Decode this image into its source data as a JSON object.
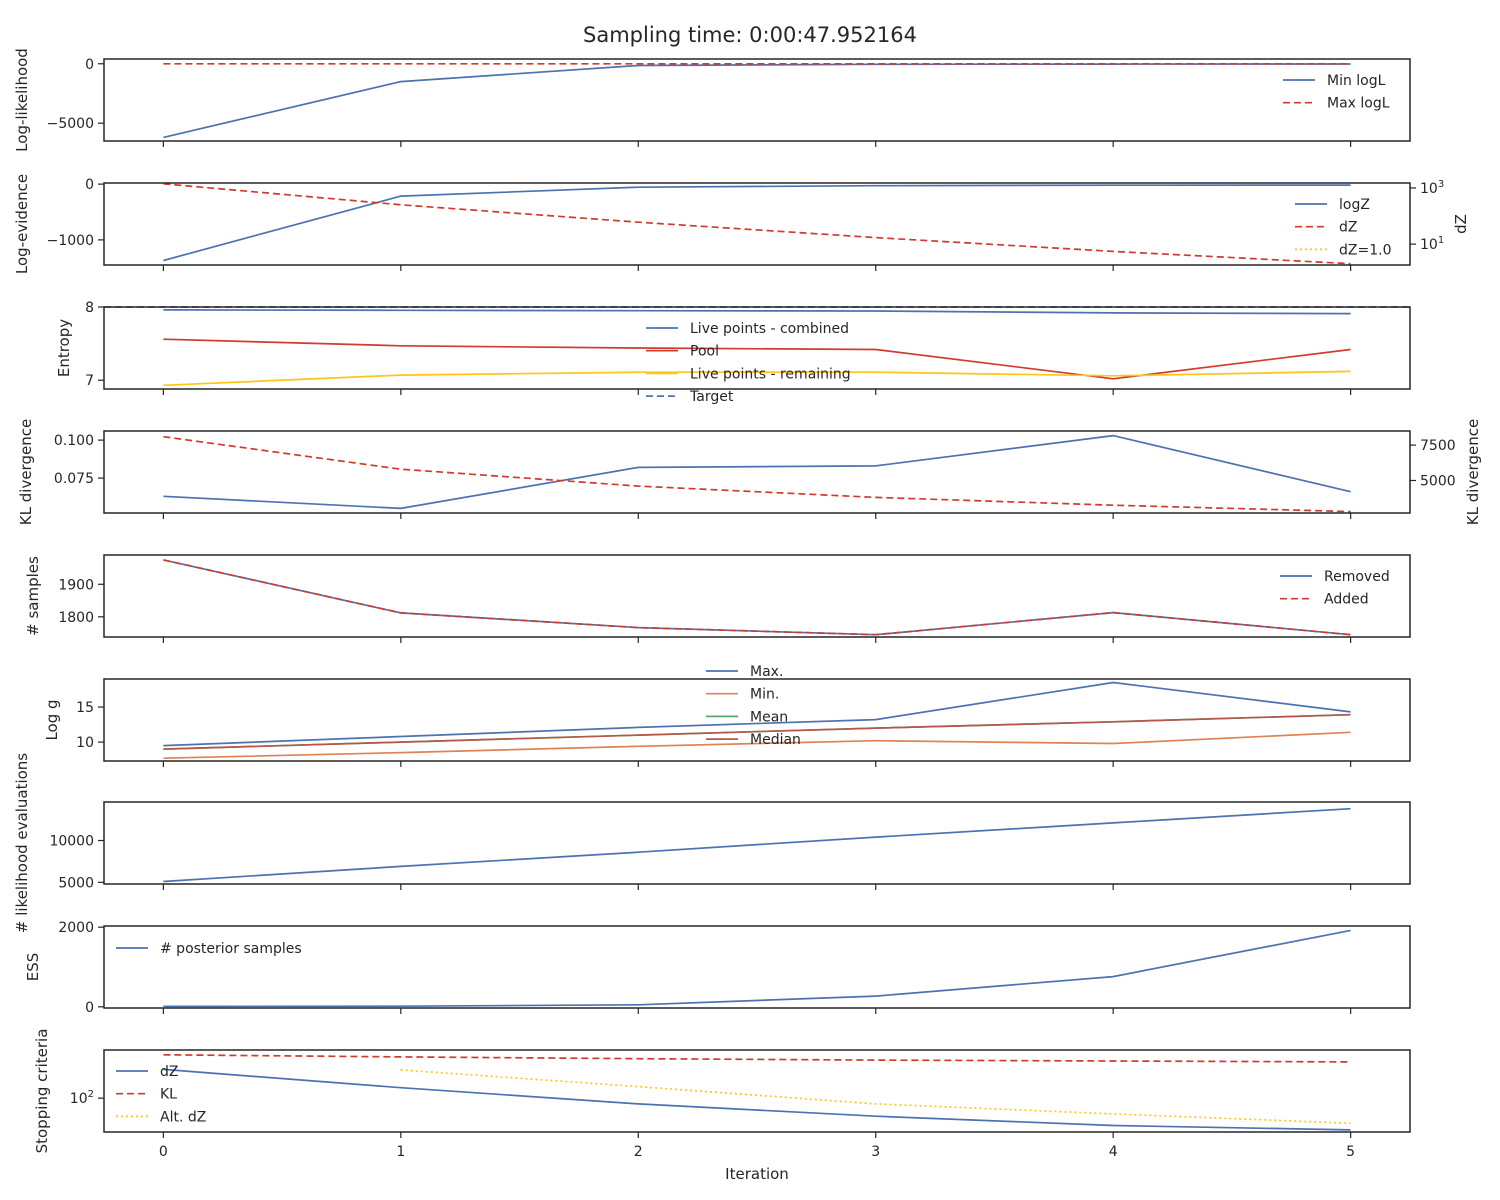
{
  "title": "Sampling time: 0:00:47.952164",
  "chart_data": {
    "type": "line",
    "xlabel": "Iteration",
    "x": [
      0,
      1,
      2,
      3,
      4,
      5
    ],
    "xticks": [
      0,
      1,
      2,
      3,
      4,
      5
    ],
    "xlim": [
      -0.25,
      5.25
    ],
    "grid": false,
    "colors": {
      "blue": "#4c72b0",
      "orange": "#dd8452",
      "green": "#55a868",
      "red": "#d03b2e",
      "yellow": "#fec615",
      "brown": "#b6574b"
    },
    "panels": [
      {
        "id": "loglikelihood",
        "ylabel": "Log-likelihood",
        "ylim": [
          -6500,
          400
        ],
        "yticks": [
          {
            "v": 0,
            "label": "0"
          },
          {
            "v": -5000,
            "label": "−5000"
          }
        ],
        "legend": "top-right",
        "series": [
          {
            "name": "Min logL",
            "color": "blue",
            "dash": "solid",
            "values": [
              -6200,
              -1500,
              -150,
              -50,
              -30,
              -20
            ]
          },
          {
            "name": "Max logL",
            "color": "red",
            "dash": "dashed",
            "values": [
              0,
              0,
              0,
              0,
              0,
              0
            ]
          }
        ]
      },
      {
        "id": "logevidence",
        "ylabel": "Log-evidence",
        "ylim": [
          -1450,
          20
        ],
        "yticks": [
          {
            "v": 0,
            "label": "0"
          },
          {
            "v": -1000,
            "label": "−1000"
          }
        ],
        "y2": {
          "label": "dZ",
          "log": true,
          "lim": [
            1.8,
            1500
          ],
          "ticks": [
            {
              "v": 1000,
              "base": "10",
              "exp": "3"
            },
            {
              "v": 10,
              "base": "10",
              "exp": "1"
            }
          ]
        },
        "legend": "right",
        "series": [
          {
            "name": "logZ",
            "color": "blue",
            "dash": "solid",
            "values": [
              -1370,
              -215,
              -55,
              -28,
              -20,
              -17
            ]
          },
          {
            "name": "dZ",
            "color": "red",
            "dash": "dashed",
            "axis": "y2",
            "values": [
              1400,
              250,
              60,
              17,
              5.5,
              2
            ]
          },
          {
            "name": "dZ=1.0",
            "color": "yellow",
            "dash": "dotted",
            "axis": "y2",
            "constant": 1.0
          }
        ]
      },
      {
        "id": "entropy",
        "ylabel": "Entropy",
        "ylim": [
          6.88,
          8.0
        ],
        "yticks": [
          {
            "v": 8,
            "label": "8"
          },
          {
            "v": 7,
            "label": "7"
          }
        ],
        "legend": "center",
        "series": [
          {
            "name": "Live points - combined",
            "color": "blue",
            "dash": "solid",
            "values": [
              7.96,
              7.955,
              7.95,
              7.945,
              7.92,
              7.91
            ]
          },
          {
            "name": "Pool",
            "color": "red",
            "dash": "solid",
            "values": [
              7.56,
              7.47,
              7.44,
              7.42,
              7.02,
              7.42
            ]
          },
          {
            "name": "Live points - remaining",
            "color": "yellow",
            "dash": "solid",
            "values": [
              6.93,
              7.07,
              7.11,
              7.11,
              7.06,
              7.12
            ]
          },
          {
            "name": "Target",
            "color": "blue",
            "dash": "dashed",
            "constant": 8.0
          }
        ]
      },
      {
        "id": "kl",
        "ylabel": "KL divergence",
        "ylim": [
          0.052,
          0.106
        ],
        "yticks": [
          {
            "v": 0.1,
            "label": "0.100"
          },
          {
            "v": 0.075,
            "label": "0.075"
          }
        ],
        "y2": {
          "label": "KL divergence",
          "log": false,
          "lim": [
            2700,
            8500
          ],
          "ticks": [
            {
              "v": 7500,
              "label": "7500"
            },
            {
              "v": 5000,
              "label": "5000"
            }
          ]
        },
        "series": [
          {
            "name": "",
            "color": "blue",
            "dash": "solid",
            "values": [
              0.063,
              0.055,
              0.082,
              0.083,
              0.103,
              0.066
            ]
          },
          {
            "name": "",
            "color": "red",
            "dash": "dashed",
            "axis": "y2",
            "values": [
              8100,
              5800,
              4600,
              3800,
              3250,
              2800
            ]
          }
        ]
      },
      {
        "id": "samples",
        "ylabel": "# samples",
        "ylim": [
          1738,
          1990
        ],
        "yticks": [
          {
            "v": 1900,
            "label": "1900"
          },
          {
            "v": 1800,
            "label": "1800"
          }
        ],
        "legend": "top-right",
        "series": [
          {
            "name": "Removed",
            "color": "blue",
            "dash": "solid",
            "values": [
              1975,
              1812,
              1767,
              1745,
              1813,
              1745
            ]
          },
          {
            "name": "Added",
            "color": "red",
            "dash": "dashed",
            "values": [
              1975,
              1812,
              1767,
              1745,
              1813,
              1745
            ]
          }
        ]
      },
      {
        "id": "logg",
        "ylabel": "Log g",
        "ylim": [
          7.3,
          19
        ],
        "yticks": [
          {
            "v": 15,
            "label": "15"
          },
          {
            "v": 10,
            "label": "10"
          }
        ],
        "legend": "top-center",
        "series": [
          {
            "name": "Max.",
            "color": "blue",
            "dash": "solid",
            "values": [
              9.5,
              10.8,
              12.1,
              13.2,
              18.5,
              14.3
            ]
          },
          {
            "name": "Min.",
            "color": "orange",
            "dash": "solid",
            "values": [
              7.7,
              8.5,
              9.4,
              10.2,
              9.8,
              11.4
            ]
          },
          {
            "name": "Mean",
            "color": "green",
            "dash": "solid",
            "values": [
              9.0,
              10.0,
              11.0,
              12.0,
              12.9,
              13.9
            ]
          },
          {
            "name": "Median",
            "color": "brown",
            "dash": "solid",
            "values": [
              9.0,
              10.0,
              11.0,
              12.0,
              12.9,
              13.9
            ]
          }
        ]
      },
      {
        "id": "likeval",
        "ylabel": "# likelihood evaluations",
        "ylim": [
          4800,
          14600
        ],
        "yticks": [
          {
            "v": 10000,
            "label": "10000"
          },
          {
            "v": 5000,
            "label": "5000"
          }
        ],
        "series": [
          {
            "name": "",
            "color": "blue",
            "dash": "solid",
            "values": [
              5100,
              6900,
              8600,
              10400,
              12100,
              13800
            ]
          }
        ]
      },
      {
        "id": "ess",
        "ylabel": "ESS",
        "ylim": [
          -30,
          2030
        ],
        "yticks": [
          {
            "v": 2000,
            "label": "2000"
          },
          {
            "v": 0,
            "label": "0"
          }
        ],
        "legend": "top-left",
        "series": [
          {
            "name": "# posterior samples",
            "color": "blue",
            "dash": "solid",
            "values": [
              10,
              15,
              50,
              270,
              760,
              1920
            ]
          }
        ]
      },
      {
        "id": "stopping",
        "ylabel": "Stopping criteria",
        "log": true,
        "ylim": [
          18,
          1150
        ],
        "yticks": [
          {
            "v": 100,
            "base": "10",
            "exp": "2"
          }
        ],
        "legend": "bottom-left",
        "series": [
          {
            "name": "dZ",
            "color": "blue",
            "dash": "solid",
            "values": [
              430,
              170,
              75,
              40,
              25,
              20
            ]
          },
          {
            "name": "KL",
            "color": "red",
            "dash": "dashed",
            "values": [
              900,
              810,
              740,
              690,
              660,
              630
            ]
          },
          {
            "name": "Alt. dZ",
            "color": "yellow",
            "dash": "dotted",
            "values": [
              null,
              420,
              180,
              75,
              45,
              28
            ]
          }
        ]
      }
    ]
  }
}
